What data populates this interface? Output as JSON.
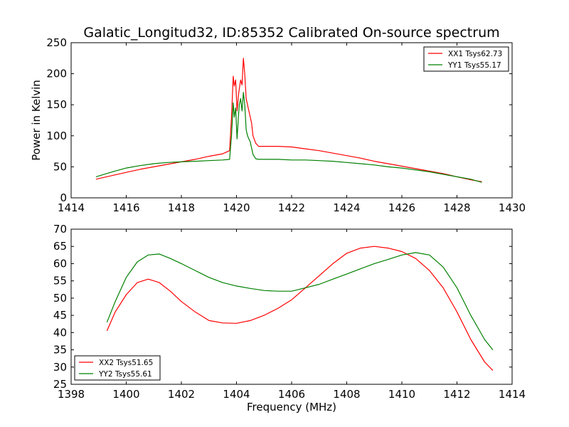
{
  "title": "Galatic_Longitud32, ID:85352 Calibrated On-source spectrum",
  "chart_data": [
    {
      "type": "line",
      "ylabel": "Power in Kelvin",
      "xlabel": "",
      "xlim": [
        1414,
        1430
      ],
      "ylim": [
        0,
        250
      ],
      "xticks": [
        1414,
        1416,
        1418,
        1420,
        1422,
        1424,
        1426,
        1428,
        1430
      ],
      "yticks": [
        0,
        50,
        100,
        150,
        200,
        250
      ],
      "legend": "top-right",
      "grid": false,
      "series": [
        {
          "name": "XX1 Tsys62.73",
          "color": "#ff0000",
          "x": [
            1414.9,
            1415.5,
            1416.0,
            1416.5,
            1417.0,
            1417.5,
            1418.0,
            1418.5,
            1419.0,
            1419.5,
            1419.75,
            1419.82,
            1419.88,
            1419.92,
            1419.97,
            1420.02,
            1420.07,
            1420.1,
            1420.15,
            1420.2,
            1420.25,
            1420.3,
            1420.35,
            1420.4,
            1420.45,
            1420.5,
            1420.55,
            1420.6,
            1420.7,
            1420.8,
            1421.0,
            1421.5,
            1422.0,
            1422.5,
            1423.0,
            1423.5,
            1424.0,
            1424.5,
            1425.0,
            1425.5,
            1426.0,
            1426.5,
            1427.0,
            1427.5,
            1428.0,
            1428.5,
            1428.9
          ],
          "values": [
            30,
            36,
            41,
            46,
            50,
            54,
            58,
            62,
            67,
            71,
            76,
            130,
            196,
            180,
            190,
            140,
            165,
            175,
            190,
            182,
            225,
            200,
            160,
            150,
            140,
            130,
            120,
            100,
            88,
            83,
            83,
            83,
            82,
            79,
            76,
            72,
            68,
            64,
            59,
            55,
            51,
            47,
            43,
            39,
            34,
            29,
            26
          ]
        },
        {
          "name": "YY1 Tsys55.17",
          "color": "#008000",
          "x": [
            1414.9,
            1415.5,
            1416.0,
            1416.5,
            1417.0,
            1417.5,
            1418.0,
            1418.5,
            1419.0,
            1419.5,
            1419.75,
            1419.82,
            1419.88,
            1419.92,
            1419.97,
            1420.02,
            1420.07,
            1420.1,
            1420.15,
            1420.2,
            1420.25,
            1420.3,
            1420.35,
            1420.4,
            1420.45,
            1420.5,
            1420.55,
            1420.6,
            1420.7,
            1420.8,
            1421.0,
            1421.5,
            1422.0,
            1422.5,
            1423.0,
            1423.5,
            1424.0,
            1424.5,
            1425.0,
            1425.5,
            1426.0,
            1426.5,
            1427.0,
            1427.5,
            1428.0,
            1428.5,
            1428.9
          ],
          "values": [
            34,
            42,
            48,
            52,
            55,
            57,
            58,
            59,
            60,
            61,
            62,
            100,
            153,
            130,
            145,
            95,
            130,
            150,
            160,
            140,
            170,
            150,
            110,
            100,
            95,
            90,
            80,
            70,
            63,
            62,
            62,
            62,
            61,
            61,
            60,
            59,
            57,
            55,
            53,
            50,
            48,
            45,
            42,
            38,
            34,
            30,
            25
          ]
        }
      ]
    },
    {
      "type": "line",
      "xlabel": "Frequency (MHz)",
      "ylabel": "",
      "xlim": [
        1398,
        1414
      ],
      "ylim": [
        25,
        70
      ],
      "xticks": [
        1398,
        1400,
        1402,
        1404,
        1406,
        1408,
        1410,
        1412,
        1414
      ],
      "yticks": [
        25,
        30,
        35,
        40,
        45,
        50,
        55,
        60,
        65,
        70
      ],
      "legend": "bottom-left",
      "grid": false,
      "series": [
        {
          "name": "XX2 Tsys51.65",
          "color": "#ff0000",
          "x": [
            1399.3,
            1399.6,
            1400.0,
            1400.4,
            1400.8,
            1401.2,
            1401.6,
            1402.0,
            1402.5,
            1403.0,
            1403.5,
            1404.0,
            1404.5,
            1405.0,
            1405.5,
            1406.0,
            1406.5,
            1407.0,
            1407.5,
            1408.0,
            1408.5,
            1409.0,
            1409.5,
            1410.0,
            1410.5,
            1411.0,
            1411.5,
            1412.0,
            1412.5,
            1413.0,
            1413.3
          ],
          "values": [
            40.5,
            46,
            51,
            54.5,
            55.5,
            54.5,
            52,
            49,
            46,
            43.5,
            42.8,
            42.7,
            43.5,
            45,
            47,
            49.5,
            53,
            56.5,
            60,
            63,
            64.5,
            65,
            64.5,
            63.5,
            61.5,
            58,
            53,
            46,
            38,
            31.5,
            29
          ]
        },
        {
          "name": "YY2 Tsys55.61",
          "color": "#008000",
          "x": [
            1399.3,
            1399.6,
            1400.0,
            1400.4,
            1400.8,
            1401.2,
            1401.6,
            1402.0,
            1402.5,
            1403.0,
            1403.5,
            1404.0,
            1404.5,
            1405.0,
            1405.5,
            1406.0,
            1406.5,
            1407.0,
            1407.5,
            1408.0,
            1408.5,
            1409.0,
            1409.5,
            1410.0,
            1410.5,
            1411.0,
            1411.5,
            1412.0,
            1412.5,
            1413.0,
            1413.3
          ],
          "values": [
            43,
            49,
            56,
            60.5,
            62.5,
            62.8,
            61.5,
            60,
            58,
            56,
            54.5,
            53.5,
            52.8,
            52.2,
            52,
            52,
            53,
            54,
            55.5,
            57,
            58.5,
            60,
            61.2,
            62.5,
            63.2,
            62.5,
            59,
            53,
            45,
            38,
            35
          ]
        }
      ]
    }
  ]
}
